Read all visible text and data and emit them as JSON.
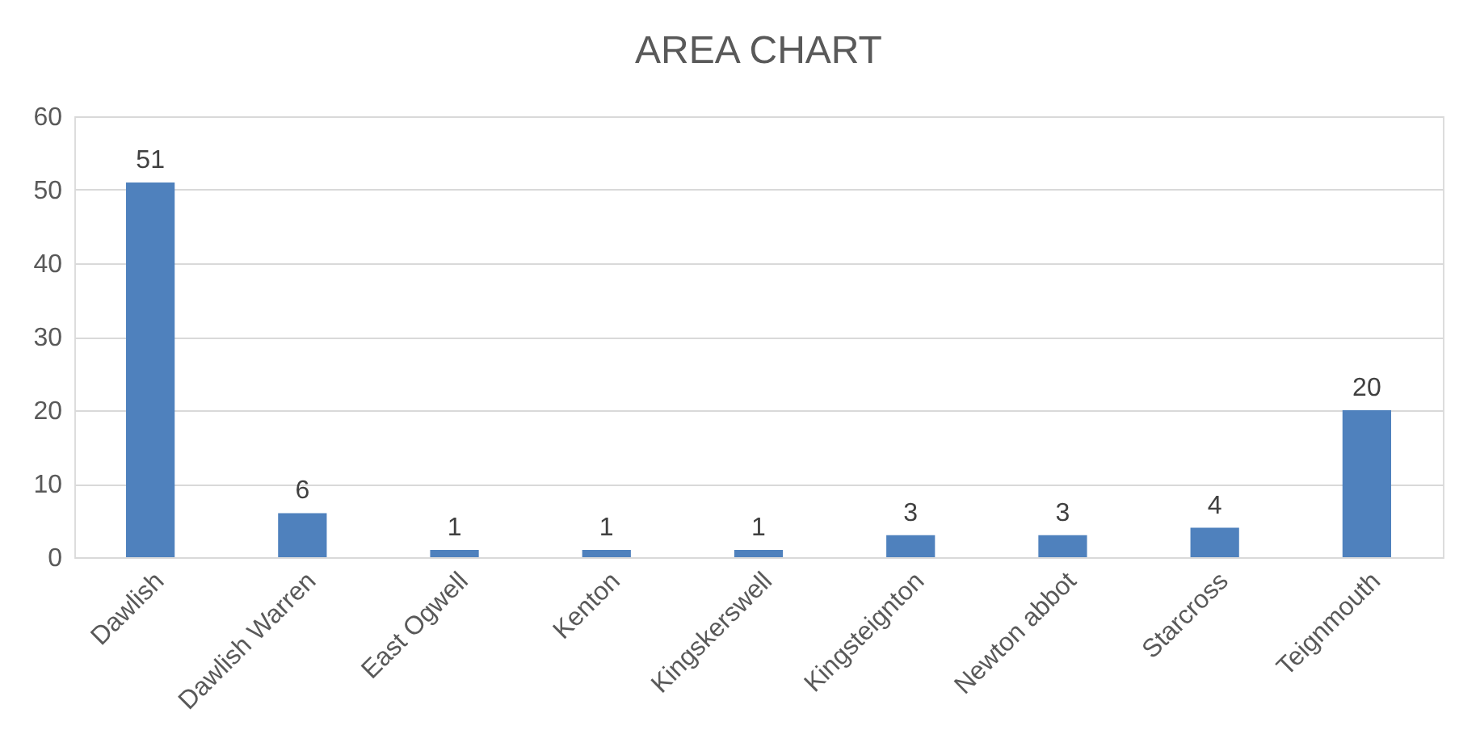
{
  "chart_data": {
    "type": "bar",
    "title": "AREA CHART",
    "categories": [
      "Dawlish",
      "Dawlish Warren",
      "East Ogwell",
      "Kenton",
      "Kingskerswell",
      "Kingsteignton",
      "Newton abbot",
      "Starcross",
      "Teignmouth"
    ],
    "values": [
      51,
      6,
      1,
      1,
      1,
      3,
      3,
      4,
      20
    ],
    "color": "#4f81bd",
    "ylim": [
      0,
      60
    ],
    "yticks": [
      0,
      10,
      20,
      30,
      40,
      50,
      60
    ],
    "grid": "y",
    "data_labels": true
  }
}
